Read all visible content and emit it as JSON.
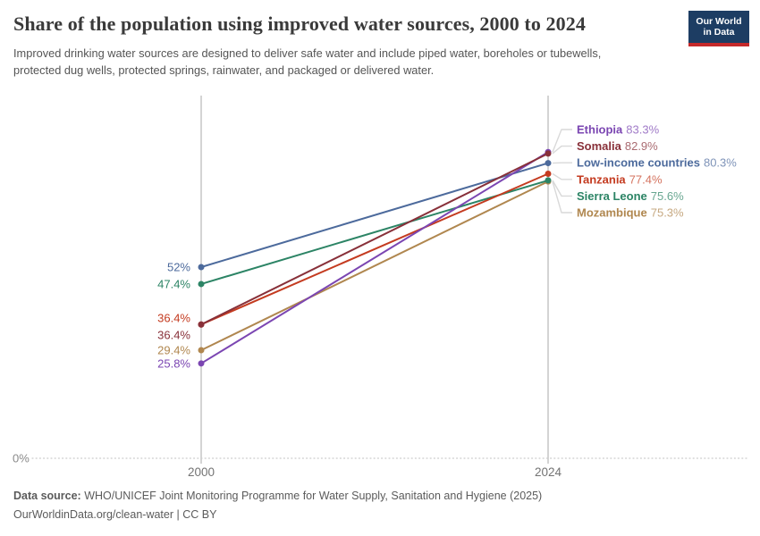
{
  "header": {
    "title": "Share of the population using improved water sources, 2000 to 2024",
    "subtitle": "Improved drinking water sources are designed to deliver safe water and include piped water, boreholes or tubewells, protected dug wells, protected springs, rainwater, and packaged or delivered water.",
    "logo": {
      "line1": "Our World",
      "line2": "in Data",
      "bg_color": "#1d3d63",
      "accent_color": "#c5292a"
    }
  },
  "chart_data": {
    "type": "line",
    "variant": "slope-chart",
    "title": "Share of the population using improved water sources, 2000 to 2024",
    "x": [
      2000,
      2024
    ],
    "x_tick_labels": [
      "2000",
      "2024"
    ],
    "baseline_label": "0%",
    "ylim": [
      0,
      98
    ],
    "grid": "dotted-zero-baseline",
    "legend_position": "right-entity-labels",
    "series": [
      {
        "name": "Ethiopia",
        "values": [
          25.8,
          83.3
        ],
        "labels": [
          "25.8%",
          "83.3%"
        ],
        "color": "#7b46b2"
      },
      {
        "name": "Somalia",
        "values": [
          36.4,
          82.9
        ],
        "labels": [
          "36.4%",
          "82.9%"
        ],
        "color": "#883039"
      },
      {
        "name": "Low-income countries",
        "values": [
          52,
          80.3
        ],
        "labels": [
          "52%",
          "80.3%"
        ],
        "color": "#4c6a9c"
      },
      {
        "name": "Tanzania",
        "values": [
          36.4,
          77.4
        ],
        "labels": [
          "36.4%",
          "77.4%"
        ],
        "color": "#c43b20"
      },
      {
        "name": "Sierra Leone",
        "values": [
          47.4,
          75.6
        ],
        "labels": [
          "47.4%",
          "75.6%"
        ],
        "color": "#2c8465"
      },
      {
        "name": "Mozambique",
        "values": [
          29.4,
          75.3
        ],
        "labels": [
          "29.4%",
          "75.3%"
        ],
        "color": "#b0874f"
      }
    ]
  },
  "footer": {
    "source_label": "Data source:",
    "source_text": " WHO/UNICEF Joint Monitoring Programme for Water Supply, Sanitation and Hygiene (2025)",
    "link": "OurWorldinData.org/clean-water",
    "license_suffix": " | CC BY"
  }
}
